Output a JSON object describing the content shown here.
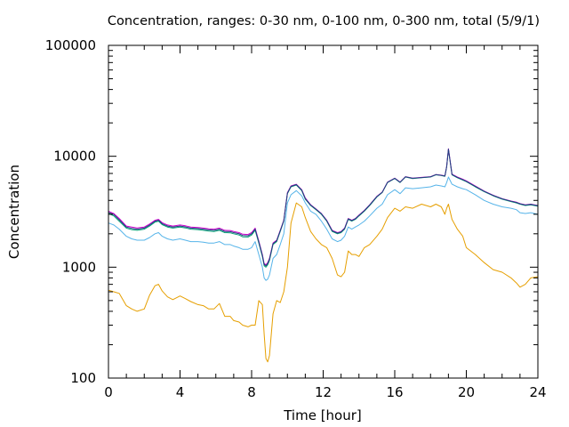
{
  "chart_data": {
    "type": "line",
    "title": "Concentration, ranges: 0-30 nm, 0-100 nm, 0-300 nm, total (5/9/1)",
    "xlabel": "Time [hour]",
    "ylabel": "Concentration",
    "xlim": [
      0,
      24
    ],
    "ylim": [
      100,
      100000
    ],
    "yscale": "log",
    "grid": false,
    "xticks": [
      0,
      4,
      8,
      12,
      16,
      20,
      24
    ],
    "xtick_labels": [
      "0",
      "4",
      "8",
      "12",
      "16",
      "20",
      "24"
    ],
    "yticks": [
      100,
      1000,
      10000,
      100000
    ],
    "ytick_labels": [
      "100",
      "1000",
      "10000",
      "100000"
    ],
    "series": [
      {
        "color": "#e69f00",
        "x": [
          0,
          0.3,
          0.6,
          1,
          1.3,
          1.6,
          2,
          2.3,
          2.6,
          2.8,
          3,
          3.3,
          3.6,
          4,
          4.3,
          4.6,
          5,
          5.3,
          5.6,
          5.9,
          6.2,
          6.5,
          6.8,
          7,
          7.3,
          7.5,
          7.8,
          8,
          8.2,
          8.4,
          8.6,
          8.7,
          8.8,
          8.9,
          9,
          9.2,
          9.4,
          9.6,
          9.8,
          10,
          10.2,
          10.5,
          10.8,
          11,
          11.3,
          11.6,
          11.9,
          12.2,
          12.5,
          12.8,
          13,
          13.2,
          13.4,
          13.6,
          13.8,
          14,
          14.3,
          14.6,
          15,
          15.3,
          15.6,
          16,
          16.3,
          16.6,
          17,
          17.5,
          18,
          18.3,
          18.6,
          18.8,
          18.9,
          19,
          19.2,
          19.5,
          19.8,
          20,
          20.5,
          21,
          21.5,
          22,
          22.5,
          22.8,
          23,
          23.3,
          23.6,
          24
        ],
        "y": [
          620,
          600,
          580,
          450,
          420,
          400,
          420,
          560,
          680,
          700,
          610,
          540,
          510,
          550,
          520,
          490,
          460,
          450,
          420,
          420,
          470,
          360,
          360,
          330,
          320,
          300,
          290,
          300,
          300,
          500,
          460,
          250,
          150,
          140,
          160,
          380,
          500,
          480,
          600,
          1000,
          2500,
          3800,
          3500,
          2800,
          2100,
          1800,
          1600,
          1500,
          1200,
          850,
          820,
          900,
          1400,
          1300,
          1300,
          1250,
          1500,
          1600,
          1900,
          2200,
          2800,
          3400,
          3200,
          3500,
          3400,
          3700,
          3500,
          3700,
          3500,
          3000,
          3400,
          3700,
          2700,
          2200,
          1900,
          1500,
          1300,
          1100,
          950,
          900,
          800,
          720,
          660,
          700,
          800,
          820
        ]
      },
      {
        "color": "#56b4e9",
        "x": [
          0,
          0.3,
          0.6,
          1,
          1.3,
          1.6,
          2,
          2.3,
          2.6,
          2.8,
          3,
          3.3,
          3.6,
          4,
          4.3,
          4.6,
          5,
          5.3,
          5.6,
          5.9,
          6.2,
          6.5,
          6.8,
          7,
          7.3,
          7.5,
          7.8,
          8,
          8.2,
          8.4,
          8.6,
          8.7,
          8.8,
          8.9,
          9,
          9.2,
          9.4,
          9.6,
          9.8,
          10,
          10.2,
          10.5,
          10.8,
          11,
          11.3,
          11.6,
          11.9,
          12.2,
          12.5,
          12.8,
          13,
          13.2,
          13.4,
          13.6,
          13.8,
          14,
          14.3,
          14.6,
          15,
          15.3,
          15.6,
          16,
          16.3,
          16.6,
          17,
          17.5,
          18,
          18.3,
          18.6,
          18.8,
          18.9,
          19,
          19.2,
          19.5,
          19.8,
          20,
          20.5,
          21,
          21.5,
          22,
          22.5,
          22.8,
          23,
          23.3,
          23.6,
          24
        ],
        "y": [
          2500,
          2400,
          2200,
          1900,
          1800,
          1750,
          1750,
          1850,
          2000,
          2050,
          1900,
          1800,
          1750,
          1800,
          1750,
          1700,
          1700,
          1680,
          1650,
          1650,
          1700,
          1600,
          1600,
          1550,
          1500,
          1450,
          1450,
          1500,
          1700,
          1300,
          1000,
          800,
          760,
          780,
          850,
          1200,
          1300,
          1600,
          2000,
          3800,
          4500,
          4900,
          4400,
          3800,
          3200,
          3000,
          2600,
          2200,
          1800,
          1700,
          1750,
          1900,
          2300,
          2200,
          2300,
          2400,
          2600,
          2900,
          3400,
          3700,
          4500,
          5000,
          4600,
          5200,
          5100,
          5200,
          5300,
          5500,
          5400,
          5300,
          5800,
          6500,
          5600,
          5300,
          5100,
          5000,
          4500,
          4000,
          3700,
          3500,
          3400,
          3300,
          3100,
          3050,
          3100,
          3000
        ]
      },
      {
        "color": "#009e73",
        "x": [
          0,
          0.3,
          0.6,
          1,
          1.3,
          1.6,
          2,
          2.3,
          2.6,
          2.8,
          3,
          3.3,
          3.6,
          4,
          4.3,
          4.6,
          5,
          5.3,
          5.6,
          5.9,
          6.2,
          6.5,
          6.8,
          7,
          7.3,
          7.5,
          7.8,
          8,
          8.2,
          8.4,
          8.6,
          8.7,
          8.8,
          8.9,
          9,
          9.2,
          9.4,
          9.6,
          9.8,
          10,
          10.2,
          10.5,
          10.8,
          11,
          11.3,
          11.6,
          11.9,
          12.2,
          12.5,
          12.8,
          13,
          13.2,
          13.4,
          13.6,
          13.8,
          14,
          14.3,
          14.6,
          15,
          15.3,
          15.6,
          16,
          16.3,
          16.6,
          17,
          17.5,
          18,
          18.3,
          18.6,
          18.8,
          18.9,
          19,
          19.2,
          19.5,
          19.8,
          20,
          20.5,
          21,
          21.5,
          22,
          22.5,
          22.8,
          23,
          23.3,
          23.6,
          24
        ],
        "y": [
          3050,
          2900,
          2600,
          2250,
          2180,
          2150,
          2200,
          2350,
          2550,
          2600,
          2420,
          2300,
          2250,
          2300,
          2260,
          2200,
          2180,
          2150,
          2120,
          2100,
          2150,
          2050,
          2040,
          2000,
          1950,
          1880,
          1870,
          1950,
          2150,
          1650,
          1250,
          1030,
          1000,
          1050,
          1150,
          1600,
          1700,
          2100,
          2600,
          4600,
          5300,
          5500,
          4900,
          4100,
          3600,
          3300,
          3000,
          2600,
          2100,
          2000,
          2050,
          2200,
          2700,
          2600,
          2700,
          2900,
          3200,
          3600,
          4300,
          4700,
          5800,
          6300,
          5800,
          6500,
          6300,
          6400,
          6500,
          6800,
          6700,
          6600,
          8000,
          11500,
          6800,
          6400,
          6100,
          5900,
          5300,
          4800,
          4400,
          4100,
          3900,
          3800,
          3700,
          3600,
          3650,
          3550
        ]
      },
      {
        "color": "#cc00cc",
        "x": [
          0,
          0.3,
          0.6,
          1,
          1.3,
          1.6,
          2,
          2.3,
          2.6,
          2.8,
          3,
          3.3,
          3.6,
          4,
          4.3,
          4.6,
          5,
          5.3,
          5.6,
          5.9,
          6.2,
          6.5,
          6.8,
          7,
          7.3,
          7.5,
          7.8,
          8,
          8.2,
          8.4,
          8.6,
          8.7,
          8.8,
          8.9,
          9,
          9.2,
          9.4,
          9.6,
          9.8,
          10,
          10.2,
          10.5,
          10.8,
          11,
          11.3,
          11.6,
          11.9,
          12.2,
          12.5,
          12.8,
          13,
          13.2,
          13.4,
          13.6,
          13.8,
          14,
          14.3,
          14.6,
          15,
          15.3,
          15.6,
          16,
          16.3,
          16.6,
          17,
          17.5,
          18,
          18.3,
          18.6,
          18.8,
          18.9,
          19,
          19.2,
          19.5,
          19.8,
          20,
          20.5,
          21,
          21.5,
          22,
          22.5,
          22.8,
          23,
          23.3,
          23.6,
          24
        ],
        "y": [
          3200,
          3050,
          2750,
          2350,
          2300,
          2260,
          2300,
          2450,
          2650,
          2700,
          2520,
          2400,
          2350,
          2400,
          2360,
          2300,
          2280,
          2250,
          2220,
          2200,
          2250,
          2150,
          2140,
          2100,
          2050,
          1980,
          1970,
          2050,
          2250,
          1720,
          1300,
          1080,
          1050,
          1100,
          1200,
          1650,
          1750,
          2150,
          2650,
          4700,
          5400,
          5600,
          5000,
          4200,
          3650,
          3350,
          3050,
          2650,
          2150,
          2050,
          2100,
          2250,
          2750,
          2650,
          2750,
          2950,
          3250,
          3650,
          4350,
          4750,
          5850,
          6350,
          5850,
          6550,
          6350,
          6450,
          6550,
          6850,
          6750,
          6650,
          8100,
          11700,
          6900,
          6500,
          6200,
          6000,
          5400,
          4850,
          4450,
          4150,
          3950,
          3850,
          3750,
          3650,
          3700,
          3600
        ]
      },
      {
        "color": "#1f3f7f",
        "x": [
          0,
          0.3,
          0.6,
          1,
          1.3,
          1.6,
          2,
          2.3,
          2.6,
          2.8,
          3,
          3.3,
          3.6,
          4,
          4.3,
          4.6,
          5,
          5.3,
          5.6,
          5.9,
          6.2,
          6.5,
          6.8,
          7,
          7.3,
          7.5,
          7.8,
          8,
          8.2,
          8.4,
          8.6,
          8.7,
          8.8,
          8.9,
          9,
          9.2,
          9.4,
          9.6,
          9.8,
          10,
          10.2,
          10.5,
          10.8,
          11,
          11.3,
          11.6,
          11.9,
          12.2,
          12.5,
          12.8,
          13,
          13.2,
          13.4,
          13.6,
          13.8,
          14,
          14.3,
          14.6,
          15,
          15.3,
          15.6,
          16,
          16.3,
          16.6,
          17,
          17.5,
          18,
          18.3,
          18.6,
          18.8,
          18.9,
          19,
          19.2,
          19.5,
          19.8,
          20,
          20.5,
          21,
          21.5,
          22,
          22.5,
          22.8,
          23,
          23.3,
          23.6,
          24
        ],
        "y": [
          3120,
          2980,
          2680,
          2300,
          2240,
          2200,
          2250,
          2400,
          2600,
          2650,
          2470,
          2350,
          2300,
          2350,
          2310,
          2250,
          2230,
          2200,
          2170,
          2150,
          2200,
          2100,
          2090,
          2050,
          2000,
          1930,
          1920,
          2000,
          2200,
          1690,
          1280,
          1060,
          1030,
          1080,
          1180,
          1630,
          1730,
          2130,
          2630,
          4650,
          5350,
          5550,
          4950,
          4150,
          3630,
          3330,
          3030,
          2630,
          2130,
          2030,
          2080,
          2230,
          2730,
          2630,
          2730,
          2930,
          3230,
          3630,
          4330,
          4730,
          5830,
          6330,
          5830,
          6530,
          6330,
          6430,
          6530,
          6830,
          6730,
          6630,
          8050,
          11600,
          6850,
          6450,
          6150,
          5950,
          5350,
          4830,
          4430,
          4130,
          3930,
          3830,
          3730,
          3630,
          3680,
          3580
        ]
      }
    ]
  }
}
